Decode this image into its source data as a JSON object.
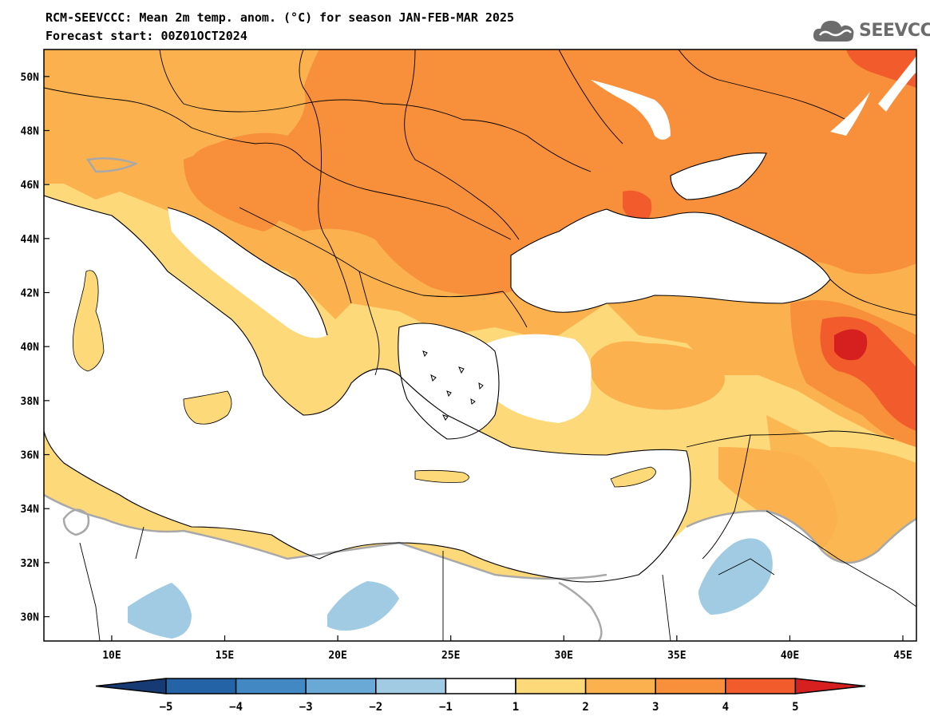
{
  "title": {
    "line1": "RCM-SEEVCCC: Mean 2m temp. anom. (°C) for season JAN-FEB-MAR 2025",
    "line2": "Forecast start: 00Z01OCT2024"
  },
  "logo": {
    "text": "SEEVCCC",
    "icon": "cloud-icon"
  },
  "map": {
    "lat_labels": [
      "50N",
      "48N",
      "46N",
      "44N",
      "42N",
      "40N",
      "38N",
      "36N",
      "34N",
      "32N",
      "30N"
    ],
    "lon_labels": [
      "10E",
      "15E",
      "20E",
      "25E",
      "30E",
      "35E",
      "40E",
      "45E"
    ],
    "lat_values": [
      50,
      48,
      46,
      44,
      42,
      40,
      38,
      36,
      34,
      32,
      30
    ],
    "lon_values": [
      10,
      15,
      20,
      25,
      30,
      35,
      40,
      45
    ],
    "extent": {
      "lon_min": 7,
      "lon_max": 45.6,
      "lat_min": 29.1,
      "lat_max": 51
    },
    "variable": "Mean 2m temperature anomaly",
    "units": "°C",
    "season": "JAN-FEB-MAR 2025"
  },
  "colorbar": {
    "tick_labels": [
      "−5",
      "−4",
      "−3",
      "−2",
      "−1",
      "1",
      "2",
      "3",
      "4",
      "5"
    ],
    "tick_values": [
      -5,
      -4,
      -3,
      -2,
      -1,
      1,
      2,
      3,
      4,
      5
    ],
    "colors": {
      "below_-5": "#163a74",
      "-5_to_-4": "#2464a6",
      "-4_to_-3": "#4289c4",
      "-3_to_-2": "#6aa9d6",
      "-2_to_-1": "#a0cbe3",
      "-1_to_1": "#ffffff",
      "1_to_2": "#fdd97a",
      "2_to_3": "#fbb24e",
      "3_to_4": "#f78f3b",
      "4_to_5": "#f25c2c",
      "above_5": "#d6201f"
    }
  }
}
